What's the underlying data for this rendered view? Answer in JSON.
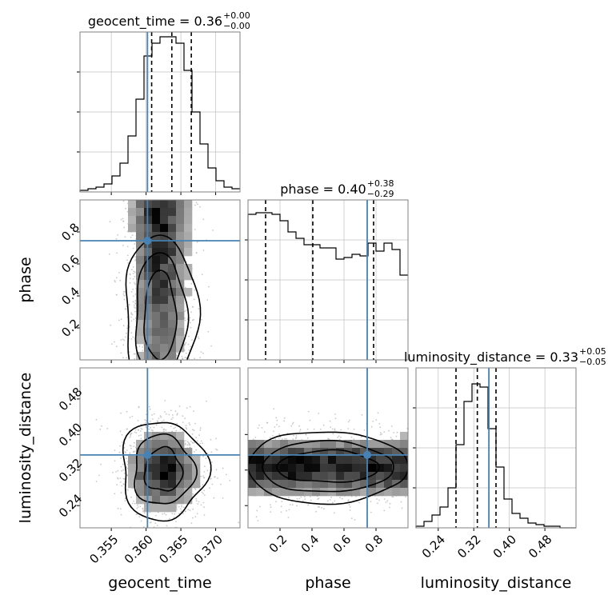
{
  "colors": {
    "truth": "#4682b4",
    "line": "#000000",
    "grid": "#c0c0c0",
    "frame": "#808080",
    "scatter": "#b0b0b0"
  },
  "chart_data": {
    "type": "corner",
    "parameters": [
      "geocent_time",
      "phase",
      "luminosity_distance"
    ],
    "axis_labels": {
      "geocent_time": "geocent_time",
      "phase": "phase",
      "luminosity_distance": "luminosity_distance"
    },
    "ranges": {
      "geocent_time": [
        0.3505,
        0.3735
      ],
      "phase": [
        0.0,
        1.0
      ],
      "luminosity_distance": [
        0.19,
        0.55
      ]
    },
    "ticks": {
      "geocent_time": [
        0.355,
        0.36,
        0.365,
        0.37
      ],
      "phase": [
        0.2,
        0.4,
        0.6,
        0.8
      ],
      "luminosity_distance": [
        0.24,
        0.32,
        0.4,
        0.48
      ]
    },
    "tick_labels": {
      "geocent_time": [
        "0.355",
        "0.360",
        "0.365",
        "0.370"
      ],
      "phase": [
        "0.2",
        "0.4",
        "0.6",
        "0.8"
      ],
      "luminosity_distance": [
        "0.24",
        "0.32",
        "0.40",
        "0.48"
      ]
    },
    "truths": {
      "geocent_time": 0.3602,
      "phase": 0.745,
      "luminosity_distance": 0.354
    },
    "titles": [
      {
        "param": "geocent_time",
        "prefix": "geocent_time = ",
        "median": "0.36",
        "plus": "+0.00",
        "minus": "−0.00"
      },
      {
        "param": "phase",
        "prefix": "phase = ",
        "median": "0.40",
        "plus": "+0.38",
        "minus": "−0.29"
      },
      {
        "param": "luminosity_distance",
        "prefix": "luminosity_distance = ",
        "median": "0.33",
        "plus": "+0.05",
        "minus": "−0.05"
      }
    ],
    "quantiles": {
      "geocent_time": [
        0.3608,
        0.3637,
        0.3665
      ],
      "phase": [
        0.11,
        0.405,
        0.785
      ],
      "luminosity_distance": [
        0.28,
        0.328,
        0.37
      ]
    },
    "histograms": {
      "geocent_time": {
        "edges": [
          0.3505,
          0.35165,
          0.3528,
          0.35395,
          0.3551,
          0.35625,
          0.3574,
          0.35855,
          0.3597,
          0.36085,
          0.362,
          0.36315,
          0.3643,
          0.36545,
          0.3666,
          0.36775,
          0.3689,
          0.37005,
          0.3712,
          0.37235,
          0.3735
        ],
        "counts": [
          0.01,
          0.02,
          0.03,
          0.05,
          0.1,
          0.18,
          0.35,
          0.58,
          0.85,
          0.93,
          0.97,
          0.97,
          0.93,
          0.76,
          0.5,
          0.3,
          0.15,
          0.07,
          0.03,
          0.02
        ]
      },
      "phase": {
        "edges": [
          0.0,
          0.05,
          0.1,
          0.15,
          0.2,
          0.25,
          0.3,
          0.35,
          0.4,
          0.45,
          0.5,
          0.55,
          0.6,
          0.65,
          0.7,
          0.75,
          0.8,
          0.85,
          0.9,
          0.95,
          1.0
        ],
        "counts": [
          0.91,
          0.92,
          0.92,
          0.91,
          0.87,
          0.8,
          0.76,
          0.72,
          0.72,
          0.7,
          0.7,
          0.63,
          0.64,
          0.66,
          0.65,
          0.73,
          0.68,
          0.73,
          0.69,
          0.53
        ]
      },
      "luminosity_distance": {
        "edges": [
          0.19,
          0.208,
          0.226,
          0.244,
          0.262,
          0.28,
          0.298,
          0.316,
          0.334,
          0.352,
          0.37,
          0.388,
          0.406,
          0.424,
          0.442,
          0.46,
          0.478,
          0.496,
          0.514,
          0.532,
          0.55
        ],
        "counts": [
          0.01,
          0.04,
          0.08,
          0.13,
          0.25,
          0.52,
          0.79,
          0.9,
          0.88,
          0.62,
          0.38,
          0.18,
          0.09,
          0.06,
          0.03,
          0.02,
          0.01,
          0.01,
          0.0,
          0.0
        ]
      }
    },
    "contour_pairs": [
      {
        "x": "geocent_time",
        "y": "phase",
        "x_center": 0.3636,
        "y_center": 0.45
      },
      {
        "x": "geocent_time",
        "y": "luminosity_distance",
        "x_center": 0.3637,
        "y_center": 0.328
      },
      {
        "x": "phase",
        "y": "luminosity_distance",
        "x_center": 0.45,
        "y_center": 0.33
      }
    ],
    "grid": true,
    "legend": "none"
  }
}
